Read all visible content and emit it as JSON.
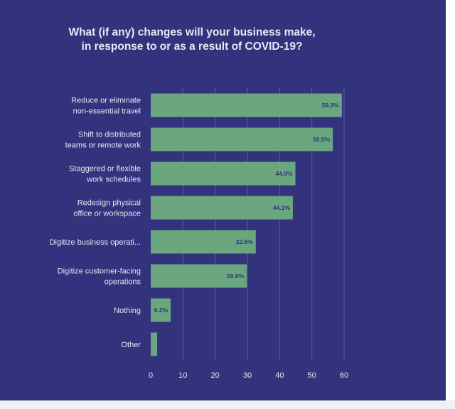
{
  "colors": {
    "background": "#33327d",
    "bar": "#6aa77f",
    "grid": "#5b5ba3",
    "text": "#e6e6f2",
    "data_label": "#33327d"
  },
  "chart_data": {
    "type": "bar",
    "orientation": "horizontal",
    "title": "What (if any) changes will your business make, in response to or as a result of COVID-19?",
    "title_lines": [
      "What (if any) changes will your business make,",
      "in response to or as a result of COVID-19?"
    ],
    "categories": [
      [
        "Reduce or eliminate",
        "non-essential travel"
      ],
      [
        "Shift to distributed",
        "teams or remote work"
      ],
      [
        "Staggered or flexible",
        "work schedules"
      ],
      [
        "Redesign physical",
        "office or workspace"
      ],
      [
        "Digitize business operati..."
      ],
      [
        "Digitize customer-facing",
        "operations"
      ],
      [
        "Nothing"
      ],
      [
        "Other"
      ]
    ],
    "values": [
      59.3,
      56.5,
      44.9,
      44.1,
      32.6,
      29.8,
      6.2,
      2.0
    ],
    "data_labels": [
      "59.3%",
      "56.5%",
      "44.9%",
      "44.1%",
      "32.6%",
      "29.8%",
      "6.2%",
      ""
    ],
    "xlim": [
      0,
      60
    ],
    "xticks": [
      0,
      10,
      20,
      30,
      40,
      50,
      60
    ],
    "xlabel": "",
    "ylabel": "",
    "grid": true,
    "legend": "none"
  }
}
